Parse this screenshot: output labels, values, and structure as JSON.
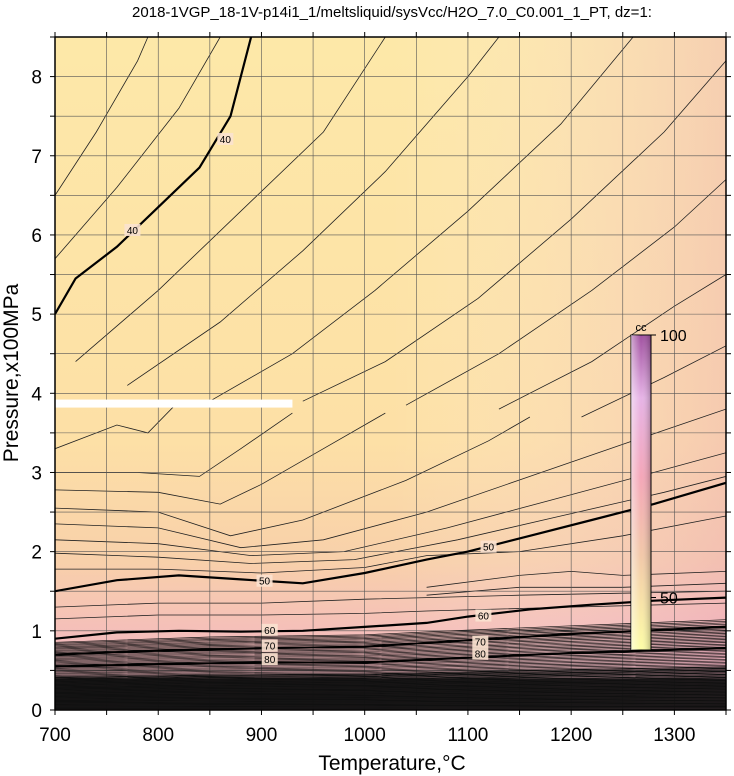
{
  "chart_data": {
    "type": "contour",
    "title": "2018-1VGP_18-1V-p14i1_1/meltsliquid/sysVcc/H2O_7.0_C0.001_1_PT, dz=1:",
    "xlabel": "Temperature,°C",
    "ylabel": "Pressure,x100MPa",
    "xlim": [
      700,
      1350
    ],
    "ylim": [
      0,
      8.5
    ],
    "x_ticks": [
      700,
      800,
      900,
      1000,
      1100,
      1200,
      1300
    ],
    "y_ticks": [
      0,
      1,
      2,
      3,
      4,
      5,
      6,
      7,
      8
    ],
    "grid": true,
    "colorbar": {
      "label": "cc",
      "ticks": [
        50,
        100
      ],
      "range": [
        40,
        100
      ],
      "colors": [
        "#fdfda6",
        "#f2c8a8",
        "#f4a6b8",
        "#e6b3e6",
        "#a050a0"
      ]
    },
    "major_contours": [
      {
        "level": 40,
        "label": "40",
        "points": [
          [
            700,
            5.0
          ],
          [
            720,
            5.45
          ],
          [
            760,
            5.85
          ],
          [
            800,
            6.35
          ],
          [
            840,
            6.85
          ],
          [
            870,
            7.5
          ],
          [
            890,
            8.5
          ]
        ],
        "labels_at": [
          [
            775,
            6.05
          ],
          [
            865,
            7.2
          ]
        ]
      },
      {
        "level": 50,
        "label": "50",
        "points": [
          [
            700,
            1.5
          ],
          [
            760,
            1.64
          ],
          [
            820,
            1.7
          ],
          [
            880,
            1.65
          ],
          [
            940,
            1.6
          ],
          [
            1000,
            1.73
          ],
          [
            1060,
            1.9
          ],
          [
            1100,
            2.0
          ],
          [
            1160,
            2.2
          ],
          [
            1220,
            2.4
          ],
          [
            1280,
            2.6
          ],
          [
            1350,
            2.87
          ]
        ],
        "labels_at": [
          [
            1120,
            2.05
          ],
          [
            903,
            1.62
          ]
        ]
      },
      {
        "level": 60,
        "label": "60",
        "points": [
          [
            700,
            0.9
          ],
          [
            760,
            0.98
          ],
          [
            820,
            1.0
          ],
          [
            880,
            0.99
          ],
          [
            940,
            1.0
          ],
          [
            1000,
            1.05
          ],
          [
            1060,
            1.1
          ],
          [
            1100,
            1.18
          ],
          [
            1160,
            1.27
          ],
          [
            1220,
            1.33
          ],
          [
            1280,
            1.38
          ],
          [
            1350,
            1.42
          ]
        ],
        "labels_at": [
          [
            1115,
            1.18
          ],
          [
            908,
            1.0
          ]
        ]
      },
      {
        "level": 70,
        "label": "70",
        "points": [
          [
            700,
            0.7
          ],
          [
            800,
            0.75
          ],
          [
            900,
            0.78
          ],
          [
            1000,
            0.8
          ],
          [
            1100,
            0.88
          ],
          [
            1200,
            0.96
          ],
          [
            1350,
            1.05
          ]
        ],
        "labels_at": [
          [
            1112,
            0.85
          ],
          [
            908,
            0.8
          ]
        ]
      },
      {
        "level": 80,
        "label": "80",
        "points": [
          [
            700,
            0.55
          ],
          [
            800,
            0.58
          ],
          [
            900,
            0.6
          ],
          [
            1000,
            0.6
          ],
          [
            1100,
            0.66
          ],
          [
            1200,
            0.72
          ],
          [
            1350,
            0.78
          ]
        ],
        "labels_at": [
          [
            1112,
            0.7
          ],
          [
            908,
            0.63
          ]
        ]
      }
    ],
    "boundary_band": {
      "y": 3.87,
      "x_range": [
        700,
        930
      ]
    }
  }
}
